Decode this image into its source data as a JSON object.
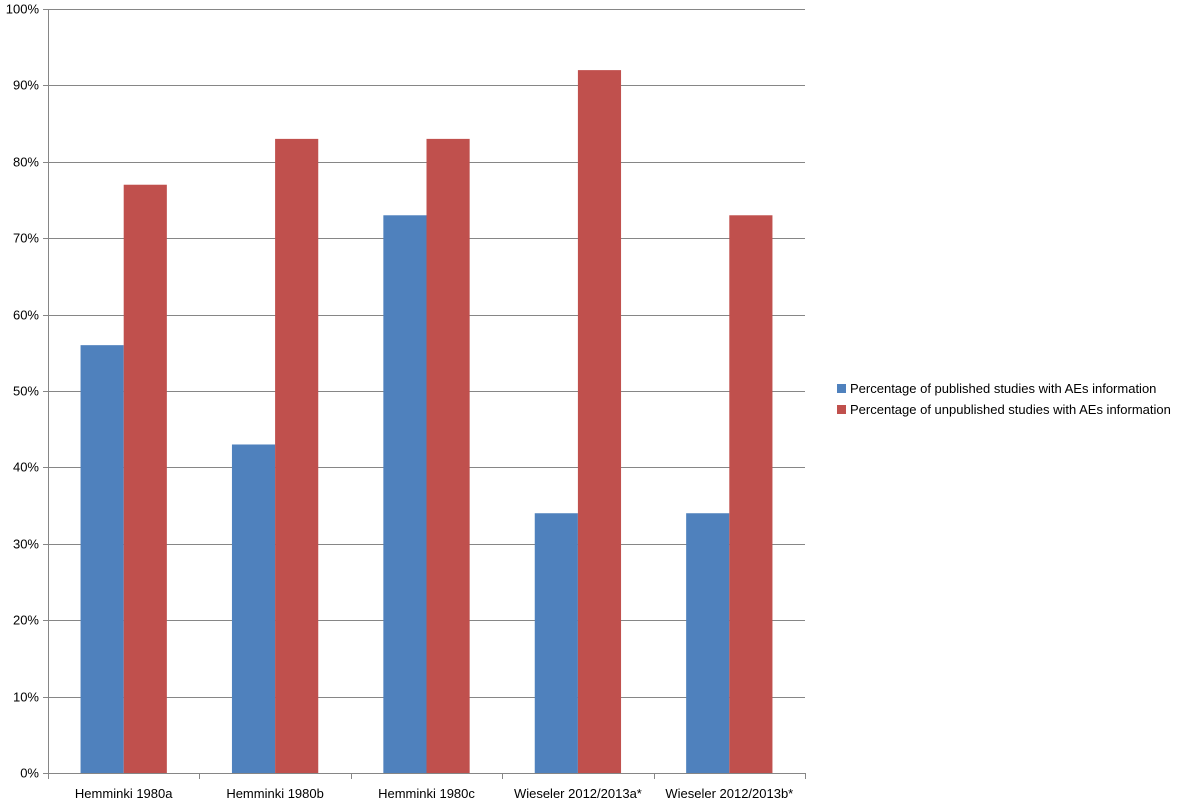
{
  "chart_data": {
    "type": "bar",
    "title": "",
    "xlabel": "",
    "ylabel": "",
    "ylim": [
      0,
      100
    ],
    "ytick_step": 10,
    "ytick_format": "percent",
    "grid": "horizontal",
    "legend_position": "right",
    "categories": [
      "Hemminki 1980a",
      "Hemminki 1980b",
      "Hemminki 1980c",
      "Wieseler 2012/2013a*",
      "Wieseler 2012/2013b*"
    ],
    "series": [
      {
        "name": "Percentage of published studies with AEs information",
        "color": "#4f81bd",
        "values": [
          56,
          43,
          73,
          34,
          34
        ]
      },
      {
        "name": "Percentage of unpublished studies with AEs information",
        "color": "#c0504d",
        "values": [
          77,
          83,
          83,
          92,
          73
        ]
      }
    ]
  }
}
